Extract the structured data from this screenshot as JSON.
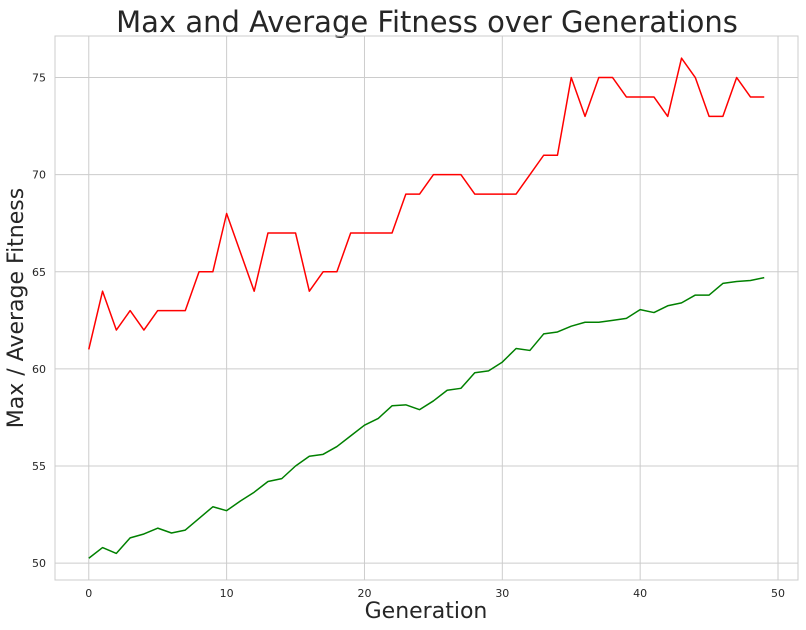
{
  "chart_data": {
    "type": "line",
    "title": "Max and Average Fitness over Generations",
    "xlabel": "Generation",
    "ylabel": "Max / Average Fitness",
    "xlim": [
      -2.45,
      51.45
    ],
    "ylim": [
      49.13,
      77.14
    ],
    "xticks": [
      0,
      10,
      20,
      30,
      40,
      50
    ],
    "yticks": [
      50,
      55,
      60,
      65,
      70,
      75
    ],
    "grid": true,
    "x": [
      0,
      1,
      2,
      3,
      4,
      5,
      6,
      7,
      8,
      9,
      10,
      11,
      12,
      13,
      14,
      15,
      16,
      17,
      18,
      19,
      20,
      21,
      22,
      23,
      24,
      25,
      26,
      27,
      28,
      29,
      30,
      31,
      32,
      33,
      34,
      35,
      36,
      37,
      38,
      39,
      40,
      41,
      42,
      43,
      44,
      45,
      46,
      47,
      48,
      49
    ],
    "series": [
      {
        "color": "#ff0000",
        "values": [
          61,
          64,
          62,
          63,
          62,
          63,
          63,
          63,
          65,
          65,
          68,
          66,
          64,
          67,
          67,
          67,
          64,
          65,
          65,
          67,
          67,
          67,
          67,
          69,
          69,
          70,
          70,
          70,
          69,
          69,
          69,
          69,
          70,
          71,
          71,
          75,
          73,
          75,
          75,
          74,
          74,
          74,
          73,
          76,
          75,
          73,
          73,
          75,
          74,
          74
        ]
      },
      {
        "color": "#008000",
        "values": [
          50.25,
          50.8,
          50.5,
          51.3,
          51.5,
          51.8,
          51.55,
          51.7,
          52.3,
          52.9,
          52.7,
          53.2,
          53.65,
          54.2,
          54.35,
          55.0,
          55.5,
          55.6,
          56.0,
          56.55,
          57.1,
          57.45,
          58.1,
          58.15,
          57.9,
          58.35,
          58.9,
          59.0,
          59.8,
          59.9,
          60.35,
          61.05,
          60.95,
          61.8,
          61.9,
          62.2,
          62.4,
          62.4,
          62.5,
          62.6,
          63.05,
          62.9,
          63.25,
          63.4,
          63.8,
          63.8,
          64.4,
          64.5,
          64.55,
          64.7
        ]
      }
    ]
  }
}
